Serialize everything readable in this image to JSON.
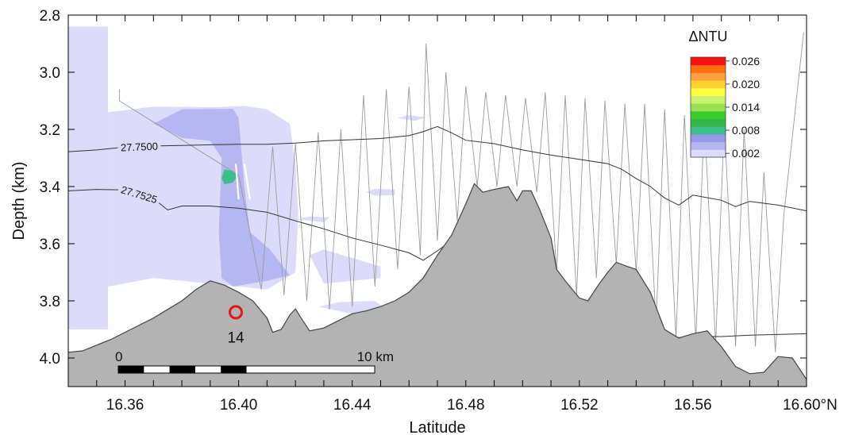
{
  "chart_data": {
    "type": "heatmap",
    "title": "",
    "xlabel": "Latitude",
    "ylabel": "Depth (km)",
    "xlim": [
      16.34,
      16.6
    ],
    "ylim": [
      4.1,
      2.8
    ],
    "x_ticks": [
      16.36,
      16.4,
      16.44,
      16.48,
      16.52,
      16.56,
      16.6
    ],
    "x_tick_labels": [
      "16.36",
      "16.40",
      "16.44",
      "16.48",
      "16.52",
      "16.56",
      "16.60°N"
    ],
    "y_ticks": [
      2.8,
      3.0,
      3.2,
      3.4,
      3.6,
      3.8,
      4.0
    ],
    "y_tick_labels": [
      "2.8",
      "3.0",
      "3.2",
      "3.4",
      "3.6",
      "3.8",
      "4.0"
    ],
    "grid": false,
    "colorbar": {
      "title": "ΔNTU",
      "levels": [
        0.002,
        0.004,
        0.006,
        0.008,
        0.01,
        0.012,
        0.014,
        0.016,
        0.018,
        0.02,
        0.022,
        0.024,
        0.026
      ],
      "labels": [
        "0.026",
        "0.020",
        "0.014",
        "0.008",
        "0.002"
      ],
      "label_values": [
        0.026,
        0.02,
        0.014,
        0.008,
        0.002
      ],
      "colors": [
        "#dcdcfa",
        "#b6b6f2",
        "#9999ea",
        "#3dbf8c",
        "#35b54a",
        "#3acc2c",
        "#9be050",
        "#ccf070",
        "#ffff40",
        "#ffd230",
        "#ffa040",
        "#ff7010",
        "#ff1010"
      ]
    },
    "density_contours": [
      {
        "label": "27.7500",
        "points": [
          [
            16.34,
            3.278
          ],
          [
            16.35,
            3.272
          ],
          [
            16.36,
            3.262
          ],
          [
            16.37,
            3.258
          ],
          [
            16.38,
            3.256
          ],
          [
            16.39,
            3.254
          ],
          [
            16.4,
            3.252
          ],
          [
            16.41,
            3.252
          ],
          [
            16.42,
            3.248
          ],
          [
            16.43,
            3.24
          ],
          [
            16.44,
            3.236
          ],
          [
            16.45,
            3.232
          ],
          [
            16.46,
            3.222
          ],
          [
            16.465,
            3.208
          ],
          [
            16.47,
            3.19
          ],
          [
            16.475,
            3.212
          ],
          [
            16.48,
            3.238
          ],
          [
            16.49,
            3.25
          ],
          [
            16.5,
            3.272
          ],
          [
            16.51,
            3.29
          ],
          [
            16.52,
            3.305
          ],
          [
            16.53,
            3.32
          ],
          [
            16.535,
            3.34
          ],
          [
            16.54,
            3.372
          ],
          [
            16.545,
            3.4
          ],
          [
            16.55,
            3.44
          ],
          [
            16.555,
            3.465
          ],
          [
            16.56,
            3.43
          ],
          [
            16.57,
            3.448
          ],
          [
            16.575,
            3.47
          ],
          [
            16.58,
            3.452
          ],
          [
            16.59,
            3.465
          ],
          [
            16.6,
            3.485
          ]
        ]
      },
      {
        "label": "27.7525",
        "points": [
          [
            16.34,
            3.415
          ],
          [
            16.35,
            3.41
          ],
          [
            16.36,
            3.412
          ],
          [
            16.37,
            3.442
          ],
          [
            16.375,
            3.482
          ],
          [
            16.38,
            3.468
          ],
          [
            16.39,
            3.468
          ],
          [
            16.4,
            3.476
          ],
          [
            16.41,
            3.49
          ],
          [
            16.42,
            3.52
          ],
          [
            16.43,
            3.548
          ],
          [
            16.44,
            3.58
          ],
          [
            16.45,
            3.605
          ],
          [
            16.46,
            3.632
          ],
          [
            16.465,
            3.658
          ],
          [
            16.47,
            3.625
          ],
          [
            16.48,
            3.552
          ],
          [
            16.49,
            3.548
          ]
        ]
      },
      {
        "label": "",
        "points": [
          [
            16.54,
            3.938
          ],
          [
            16.55,
            3.932
          ],
          [
            16.56,
            3.925
          ],
          [
            16.57,
            3.925
          ],
          [
            16.58,
            3.92
          ],
          [
            16.6,
            3.915
          ]
        ]
      }
    ],
    "seafloor_depth": [
      [
        16.34,
        3.98
      ],
      [
        16.345,
        3.975
      ],
      [
        16.35,
        3.955
      ],
      [
        16.355,
        3.935
      ],
      [
        16.36,
        3.91
      ],
      [
        16.365,
        3.885
      ],
      [
        16.37,
        3.86
      ],
      [
        16.375,
        3.83
      ],
      [
        16.38,
        3.8
      ],
      [
        16.385,
        3.76
      ],
      [
        16.39,
        3.73
      ],
      [
        16.395,
        3.745
      ],
      [
        16.4,
        3.77
      ],
      [
        16.405,
        3.8
      ],
      [
        16.41,
        3.86
      ],
      [
        16.412,
        3.91
      ],
      [
        16.415,
        3.9
      ],
      [
        16.418,
        3.85
      ],
      [
        16.42,
        3.828
      ],
      [
        16.422,
        3.86
      ],
      [
        16.425,
        3.905
      ],
      [
        16.43,
        3.895
      ],
      [
        16.435,
        3.87
      ],
      [
        16.44,
        3.845
      ],
      [
        16.445,
        3.835
      ],
      [
        16.45,
        3.82
      ],
      [
        16.455,
        3.8
      ],
      [
        16.46,
        3.77
      ],
      [
        16.465,
        3.72
      ],
      [
        16.47,
        3.64
      ],
      [
        16.475,
        3.57
      ],
      [
        16.48,
        3.46
      ],
      [
        16.483,
        3.39
      ],
      [
        16.486,
        3.42
      ],
      [
        16.49,
        3.41
      ],
      [
        16.495,
        3.4
      ],
      [
        16.498,
        3.45
      ],
      [
        16.5,
        3.415
      ],
      [
        16.503,
        3.415
      ],
      [
        16.506,
        3.48
      ],
      [
        16.51,
        3.58
      ],
      [
        16.512,
        3.69
      ],
      [
        16.515,
        3.73
      ],
      [
        16.52,
        3.79
      ],
      [
        16.523,
        3.8
      ],
      [
        16.527,
        3.74
      ],
      [
        16.53,
        3.7
      ],
      [
        16.533,
        3.665
      ],
      [
        16.537,
        3.68
      ],
      [
        16.54,
        3.69
      ],
      [
        16.545,
        3.77
      ],
      [
        16.55,
        3.9
      ],
      [
        16.555,
        3.93
      ],
      [
        16.56,
        3.915
      ],
      [
        16.565,
        3.905
      ],
      [
        16.57,
        3.96
      ],
      [
        16.575,
        4.03
      ],
      [
        16.58,
        4.055
      ],
      [
        16.585,
        4.05
      ],
      [
        16.59,
        3.995
      ],
      [
        16.595,
        4.0
      ],
      [
        16.6,
        4.075
      ]
    ],
    "turbidity_patches": [
      {
        "level": 0.002,
        "points": [
          [
            16.34,
            3.9
          ],
          [
            16.34,
            2.84
          ],
          [
            16.354,
            2.84
          ],
          [
            16.354,
            3.9
          ]
        ]
      },
      {
        "level": 0.002,
        "points": [
          [
            16.354,
            3.75
          ],
          [
            16.354,
            3.14
          ],
          [
            16.37,
            3.12
          ],
          [
            16.392,
            3.122
          ],
          [
            16.402,
            3.118
          ],
          [
            16.41,
            3.13
          ],
          [
            16.418,
            3.18
          ],
          [
            16.42,
            3.32
          ],
          [
            16.421,
            3.5
          ],
          [
            16.42,
            3.7
          ],
          [
            16.41,
            3.76
          ],
          [
            16.39,
            3.74
          ],
          [
            16.37,
            3.72
          ]
        ]
      },
      {
        "level": 0.004,
        "points": [
          [
            16.37,
            3.18
          ],
          [
            16.38,
            3.13
          ],
          [
            16.398,
            3.128
          ],
          [
            16.4,
            3.16
          ],
          [
            16.402,
            3.4
          ],
          [
            16.404,
            3.56
          ],
          [
            16.411,
            3.62
          ],
          [
            16.418,
            3.71
          ],
          [
            16.41,
            3.73
          ],
          [
            16.398,
            3.75
          ],
          [
            16.394,
            3.72
          ],
          [
            16.393,
            3.56
          ],
          [
            16.394,
            3.3
          ],
          [
            16.39,
            3.24
          ],
          [
            16.38,
            3.23
          ]
        ]
      },
      {
        "level": 0.008,
        "points": [
          [
            16.395,
            3.34
          ],
          [
            16.398,
            3.345
          ],
          [
            16.4,
            3.36
          ],
          [
            16.398,
            3.385
          ],
          [
            16.395,
            3.392
          ],
          [
            16.394,
            3.37
          ]
        ]
      },
      {
        "level": 0.002,
        "points": [
          [
            16.425,
            3.64
          ],
          [
            16.43,
            3.62
          ],
          [
            16.44,
            3.65
          ],
          [
            16.45,
            3.68
          ],
          [
            16.45,
            3.72
          ],
          [
            16.43,
            3.74
          ]
        ]
      },
      {
        "level": 0.002,
        "points": [
          [
            16.428,
            3.82
          ],
          [
            16.435,
            3.805
          ],
          [
            16.448,
            3.8
          ],
          [
            16.452,
            3.83
          ],
          [
            16.44,
            3.845
          ]
        ]
      },
      {
        "level": 0.002,
        "points": [
          [
            16.445,
            3.42
          ],
          [
            16.448,
            3.408
          ],
          [
            16.455,
            3.41
          ],
          [
            16.455,
            3.43
          ],
          [
            16.448,
            3.432
          ]
        ]
      },
      {
        "level": 0.002,
        "points": [
          [
            16.42,
            3.515
          ],
          [
            16.425,
            3.505
          ],
          [
            16.432,
            3.508
          ],
          [
            16.43,
            3.525
          ]
        ]
      },
      {
        "level": 0.002,
        "points": [
          [
            16.456,
            3.16
          ],
          [
            16.46,
            3.15
          ],
          [
            16.466,
            3.158
          ],
          [
            16.462,
            3.17
          ]
        ]
      }
    ],
    "transect_path": [
      [
        16.358,
        3.06
      ],
      [
        16.358,
        3.1
      ],
      [
        16.4,
        3.36
      ],
      [
        16.408,
        3.76
      ],
      [
        16.412,
        3.26
      ],
      [
        16.416,
        3.78
      ],
      [
        16.42,
        3.25
      ],
      [
        16.424,
        3.8
      ],
      [
        16.428,
        3.21
      ],
      [
        16.432,
        3.83
      ],
      [
        16.436,
        3.2
      ],
      [
        16.44,
        3.82
      ],
      [
        16.444,
        3.08
      ],
      [
        16.448,
        3.75
      ],
      [
        16.452,
        3.06
      ],
      [
        16.456,
        3.69
      ],
      [
        16.46,
        3.05
      ],
      [
        16.464,
        3.64
      ],
      [
        16.466,
        2.9
      ],
      [
        16.47,
        3.59
      ],
      [
        16.473,
        3.0
      ],
      [
        16.477,
        3.52
      ],
      [
        16.48,
        3.05
      ],
      [
        16.484,
        3.4
      ],
      [
        16.487,
        3.07
      ],
      [
        16.491,
        3.4
      ],
      [
        16.494,
        3.08
      ],
      [
        16.498,
        3.4
      ],
      [
        16.501,
        3.09
      ],
      [
        16.505,
        3.42
      ],
      [
        16.508,
        3.07
      ],
      [
        16.512,
        3.7
      ],
      [
        16.515,
        3.08
      ],
      [
        16.519,
        3.78
      ],
      [
        16.522,
        3.09
      ],
      [
        16.526,
        3.72
      ],
      [
        16.529,
        3.1
      ],
      [
        16.533,
        3.67
      ],
      [
        16.536,
        3.11
      ],
      [
        16.54,
        3.7
      ],
      [
        16.543,
        3.11
      ],
      [
        16.547,
        3.88
      ],
      [
        16.55,
        3.13
      ],
      [
        16.554,
        3.93
      ],
      [
        16.557,
        3.15
      ],
      [
        16.561,
        3.94
      ],
      [
        16.564,
        3.16
      ],
      [
        16.568,
        3.95
      ],
      [
        16.571,
        3.18
      ],
      [
        16.575,
        3.96
      ],
      [
        16.578,
        3.2
      ],
      [
        16.582,
        3.96
      ],
      [
        16.585,
        3.35
      ],
      [
        16.589,
        3.98
      ],
      [
        16.592,
        3.5
      ],
      [
        16.599,
        2.86
      ]
    ],
    "survey_marks": [
      [
        [
          16.399,
          3.32
        ],
        [
          16.4,
          3.445
        ]
      ],
      [
        [
          16.402,
          3.32
        ],
        [
          16.404,
          3.445
        ]
      ]
    ],
    "station": {
      "label": "14",
      "x": 16.399,
      "y": 3.84
    },
    "scale_bar": {
      "label_start": "0",
      "label_end": "10 km",
      "segments": 10
    }
  }
}
